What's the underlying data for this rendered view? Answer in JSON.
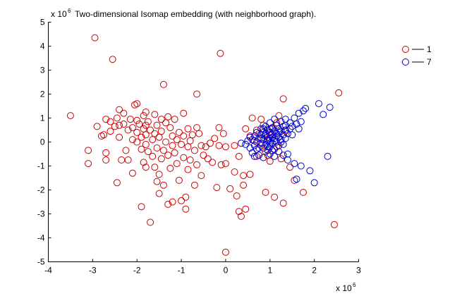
{
  "chart_data": {
    "type": "scatter",
    "title": "Two-dimensional Isomap embedding (with neighborhood graph).",
    "xlabel": "",
    "ylabel": "",
    "x_multiplier": "x 10",
    "x_multiplier_exp": "6",
    "y_multiplier": "x 10",
    "y_multiplier_exp": "6",
    "xlim": [
      -4,
      3
    ],
    "ylim": [
      -5,
      5
    ],
    "xticks": [
      -4,
      -3,
      -2,
      -1,
      0,
      1,
      2,
      3
    ],
    "yticks": [
      -5,
      -4,
      -3,
      -2,
      -1,
      0,
      1,
      2,
      3,
      4,
      5
    ],
    "grid": false,
    "legend_position": "top-right",
    "marker": "open-circle",
    "series": [
      {
        "name": "1",
        "color": "#cc0000",
        "points": [
          [
            -3.5,
            1.1
          ],
          [
            -2.95,
            4.35
          ],
          [
            -2.55,
            3.45
          ],
          [
            -1.4,
            2.4
          ],
          [
            -0.12,
            3.7
          ],
          [
            -0.65,
            2.0
          ],
          [
            1.3,
            1.8
          ],
          [
            2.55,
            2.05
          ],
          [
            2.45,
            -3.45
          ],
          [
            0.0,
            -4.6
          ],
          [
            -3.1,
            -0.35
          ],
          [
            -3.1,
            -0.9
          ],
          [
            -2.9,
            0.65
          ],
          [
            -2.8,
            0.25
          ],
          [
            -2.75,
            0.3
          ],
          [
            -2.7,
            0.95
          ],
          [
            -2.7,
            -0.45
          ],
          [
            -2.7,
            -0.75
          ],
          [
            -2.6,
            0.85
          ],
          [
            -2.6,
            0.45
          ],
          [
            -2.5,
            0.65
          ],
          [
            -2.45,
            1.0
          ],
          [
            -2.4,
            1.35
          ],
          [
            -2.4,
            0.7
          ],
          [
            -2.4,
            0.2
          ],
          [
            -2.35,
            -0.75
          ],
          [
            -2.3,
            1.2
          ],
          [
            -2.3,
            0.75
          ],
          [
            -2.25,
            -0.35
          ],
          [
            -2.2,
            0.5
          ],
          [
            -2.2,
            -0.75
          ],
          [
            -2.15,
            0.95
          ],
          [
            -2.1,
            0.6
          ],
          [
            -2.1,
            0.1
          ],
          [
            -2.1,
            -1.3
          ],
          [
            -2.05,
            1.55
          ],
          [
            -2.0,
            1.6
          ],
          [
            -2.0,
            0.9
          ],
          [
            -2.0,
            0.4
          ],
          [
            -2.0,
            0.0
          ],
          [
            -1.95,
            0.75
          ],
          [
            -1.9,
            0.2
          ],
          [
            -1.9,
            -0.3
          ],
          [
            -1.9,
            -2.7
          ],
          [
            -1.85,
            1.1
          ],
          [
            -1.85,
            0.55
          ],
          [
            -1.85,
            -0.85
          ],
          [
            -1.8,
            1.25
          ],
          [
            -1.8,
            0.7
          ],
          [
            -1.8,
            0.3
          ],
          [
            -1.8,
            -0.1
          ],
          [
            -1.8,
            -1.05
          ],
          [
            -1.75,
            0.85
          ],
          [
            -1.75,
            -0.4
          ],
          [
            -1.7,
            0.5
          ],
          [
            -1.7,
            -3.35
          ],
          [
            -1.65,
            0.1
          ],
          [
            -1.65,
            -0.6
          ],
          [
            -1.6,
            1.15
          ],
          [
            -1.6,
            0.35
          ],
          [
            -1.6,
            -1.05
          ],
          [
            -1.55,
            0.7
          ],
          [
            -1.55,
            -0.25
          ],
          [
            -1.5,
            0.2
          ],
          [
            -1.5,
            -1.35
          ],
          [
            -1.5,
            -2.15
          ],
          [
            -1.45,
            0.95
          ],
          [
            -1.45,
            0.45
          ],
          [
            -1.45,
            -0.7
          ],
          [
            -1.4,
            -0.35
          ],
          [
            -1.4,
            -1.8
          ],
          [
            -1.35,
            0.8
          ],
          [
            -1.35,
            0.0
          ],
          [
            -1.3,
            1.05
          ],
          [
            -1.3,
            -0.55
          ],
          [
            -1.3,
            -2.6
          ],
          [
            -1.25,
            0.6
          ],
          [
            -1.25,
            -1.1
          ],
          [
            -1.2,
            0.25
          ],
          [
            -1.2,
            -0.15
          ],
          [
            -1.2,
            -2.5
          ],
          [
            -1.15,
            0.95
          ],
          [
            -1.15,
            -0.45
          ],
          [
            -1.1,
            0.1
          ],
          [
            -1.1,
            -0.9
          ],
          [
            -1.05,
            0.4
          ],
          [
            -1.05,
            -1.6
          ],
          [
            -1.0,
            -0.1
          ],
          [
            -1.0,
            -2.45
          ],
          [
            -0.95,
            1.2
          ],
          [
            -0.95,
            0.25
          ],
          [
            -0.95,
            -0.65
          ],
          [
            -0.9,
            -2.8
          ],
          [
            -0.9,
            -2.3
          ],
          [
            -0.85,
            0.55
          ],
          [
            -0.85,
            -0.2
          ],
          [
            -0.85,
            -1.15
          ],
          [
            -0.8,
            0.05
          ],
          [
            -0.8,
            -0.75
          ],
          [
            -0.75,
            0.3
          ],
          [
            -0.7,
            -0.35
          ],
          [
            -0.7,
            -1.8
          ],
          [
            -0.65,
            0.6
          ],
          [
            -0.65,
            -0.95
          ],
          [
            -0.6,
            0.35
          ],
          [
            -0.55,
            -0.15
          ],
          [
            -0.5,
            -0.55
          ],
          [
            -0.45,
            -0.2
          ],
          [
            -0.4,
            -0.7
          ],
          [
            -0.35,
            -0.05
          ],
          [
            -0.3,
            -0.85
          ],
          [
            -0.25,
            0.15
          ],
          [
            -0.2,
            -1.9
          ],
          [
            -0.15,
            -0.15
          ],
          [
            -0.15,
            0.6
          ],
          [
            -0.1,
            -0.95
          ],
          [
            -0.05,
            0.35
          ],
          [
            0.0,
            -0.2
          ],
          [
            0.0,
            -0.9
          ],
          [
            0.1,
            -1.95
          ],
          [
            0.2,
            -0.15
          ],
          [
            0.2,
            -1.25
          ],
          [
            0.25,
            -2.25
          ],
          [
            0.3,
            -2.9
          ],
          [
            0.35,
            -3.1
          ],
          [
            0.4,
            -1.4
          ],
          [
            0.4,
            -1.8
          ],
          [
            0.45,
            -2.8
          ],
          [
            0.45,
            0.55
          ],
          [
            0.55,
            -1.35
          ],
          [
            0.6,
            1.0
          ],
          [
            0.65,
            0.05
          ],
          [
            0.7,
            -0.6
          ],
          [
            0.75,
            0.35
          ],
          [
            0.8,
            -0.15
          ],
          [
            0.85,
            0.7
          ],
          [
            0.9,
            -0.4
          ],
          [
            0.9,
            -2.1
          ],
          [
            0.95,
            0.2
          ],
          [
            1.0,
            -0.8
          ],
          [
            1.05,
            0.55
          ],
          [
            1.1,
            -2.3
          ],
          [
            1.15,
            -0.2
          ],
          [
            1.2,
            1.1
          ],
          [
            1.25,
            -0.7
          ],
          [
            1.3,
            -2.55
          ],
          [
            1.35,
            0.45
          ],
          [
            1.45,
            -1.05
          ],
          [
            1.55,
            -1.6
          ],
          [
            1.75,
            -2.1
          ],
          [
            -2.45,
            -1.7
          ],
          [
            -0.55,
            -1.4
          ],
          [
            0.3,
            -0.6
          ],
          [
            0.55,
            0.25
          ],
          [
            0.8,
            0.95
          ],
          [
            1.0,
            0.3
          ],
          [
            0.7,
            0.5
          ],
          [
            0.95,
            -0.55
          ],
          [
            1.15,
            0.8
          ],
          [
            -1.55,
            -1.65
          ]
        ]
      },
      {
        "name": "7",
        "color": "#0000cc",
        "points": [
          [
            0.35,
            -0.05
          ],
          [
            0.45,
            -0.1
          ],
          [
            0.5,
            0.05
          ],
          [
            0.55,
            -0.25
          ],
          [
            0.6,
            0.1
          ],
          [
            0.6,
            -0.45
          ],
          [
            0.65,
            0.25
          ],
          [
            0.65,
            -0.15
          ],
          [
            0.7,
            0.4
          ],
          [
            0.7,
            0.0
          ],
          [
            0.7,
            -0.3
          ],
          [
            0.75,
            0.15
          ],
          [
            0.75,
            -0.55
          ],
          [
            0.8,
            0.55
          ],
          [
            0.8,
            0.3
          ],
          [
            0.8,
            -0.05
          ],
          [
            0.85,
            0.4
          ],
          [
            0.85,
            0.1
          ],
          [
            0.85,
            -0.25
          ],
          [
            0.85,
            -0.65
          ],
          [
            0.9,
            0.65
          ],
          [
            0.9,
            0.25
          ],
          [
            0.9,
            -0.1
          ],
          [
            0.95,
            0.5
          ],
          [
            0.95,
            0.05
          ],
          [
            0.95,
            -0.35
          ],
          [
            1.0,
            0.8
          ],
          [
            1.0,
            0.4
          ],
          [
            1.0,
            0.15
          ],
          [
            1.0,
            -0.2
          ],
          [
            1.0,
            -0.5
          ],
          [
            1.05,
            0.6
          ],
          [
            1.05,
            0.3
          ],
          [
            1.05,
            -0.05
          ],
          [
            1.1,
            0.95
          ],
          [
            1.1,
            0.45
          ],
          [
            1.1,
            0.15
          ],
          [
            1.1,
            -0.3
          ],
          [
            1.1,
            -0.6
          ],
          [
            1.15,
            0.7
          ],
          [
            1.15,
            0.35
          ],
          [
            1.15,
            0.0
          ],
          [
            1.2,
            0.55
          ],
          [
            1.2,
            0.2
          ],
          [
            1.2,
            -0.15
          ],
          [
            1.2,
            -0.4
          ],
          [
            1.25,
            0.85
          ],
          [
            1.25,
            0.45
          ],
          [
            1.25,
            0.1
          ],
          [
            1.3,
            0.65
          ],
          [
            1.3,
            0.3
          ],
          [
            1.3,
            -0.1
          ],
          [
            1.3,
            -0.55
          ],
          [
            1.35,
            0.95
          ],
          [
            1.35,
            0.5
          ],
          [
            1.35,
            0.15
          ],
          [
            1.4,
            0.35
          ],
          [
            1.4,
            -0.75
          ],
          [
            1.45,
            0.8
          ],
          [
            1.45,
            0.55
          ],
          [
            1.5,
            0.65
          ],
          [
            1.5,
            0.3
          ],
          [
            1.55,
            1.0
          ],
          [
            1.55,
            -0.9
          ],
          [
            1.6,
            0.75
          ],
          [
            1.6,
            -1.55
          ],
          [
            1.65,
            1.2
          ],
          [
            1.65,
            0.55
          ],
          [
            1.7,
            0.85
          ],
          [
            1.7,
            -1.0
          ],
          [
            1.75,
            1.3
          ],
          [
            1.8,
            1.4
          ],
          [
            1.9,
            -1.2
          ],
          [
            2.0,
            -1.7
          ],
          [
            2.1,
            1.6
          ],
          [
            2.2,
            1.15
          ],
          [
            2.3,
            -0.6
          ],
          [
            2.35,
            1.45
          ],
          [
            0.95,
            0.1
          ],
          [
            1.05,
            0.2
          ],
          [
            0.9,
            0.35
          ],
          [
            1.0,
            -0.05
          ],
          [
            1.15,
            0.25
          ],
          [
            1.25,
            0.0
          ],
          [
            0.8,
            0.15
          ],
          [
            0.75,
            -0.25
          ],
          [
            1.05,
            -0.35
          ],
          [
            1.2,
            0.4
          ],
          [
            0.95,
            -0.2
          ],
          [
            1.1,
            0.05
          ],
          [
            1.0,
            0.55
          ],
          [
            0.85,
            0.55
          ],
          [
            1.35,
            0.7
          ],
          [
            1.4,
            -0.5
          ],
          [
            0.65,
            -0.6
          ],
          [
            0.55,
            0.2
          ]
        ]
      }
    ]
  }
}
